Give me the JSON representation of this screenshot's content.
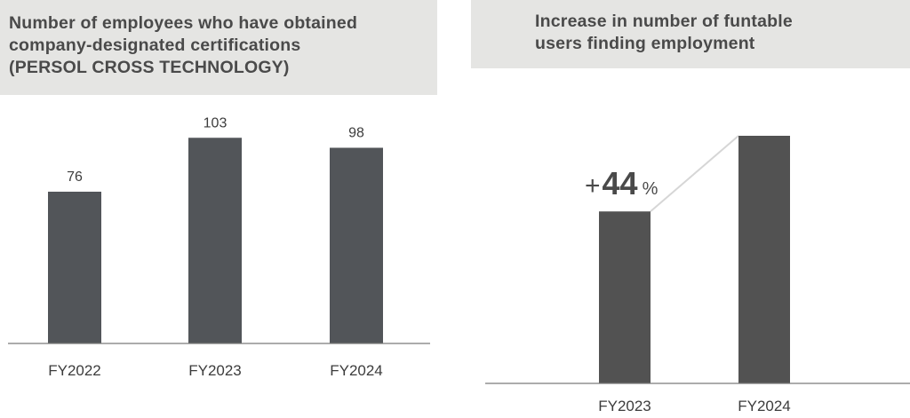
{
  "chart_data": [
    {
      "type": "bar",
      "title_lines": [
        "Number of employees who have obtained",
        "company-designated certifications",
        "(PERSOL CROSS TECHNOLOGY)"
      ],
      "categories": [
        "FY2022",
        "FY2023",
        "FY2024"
      ],
      "values": [
        76,
        103,
        98
      ],
      "value_labels": [
        "76",
        "103",
        "98"
      ],
      "ylim": [
        0,
        120
      ],
      "grid": false,
      "bar_color": "#525559",
      "axis_color": "#7a7a7a"
    },
    {
      "type": "bar",
      "title_lines": [
        "Increase in number of funtable",
        "users finding employment"
      ],
      "categories": [
        "FY2023",
        "FY2024"
      ],
      "values": [
        100,
        144
      ],
      "growth": {
        "plus": "+",
        "number": "44",
        "unit": "%"
      },
      "ylim": [
        0,
        160
      ],
      "grid": false,
      "bar_color": "#525252",
      "connector_color": "#d6d6d6",
      "axis_color": "#7a7a7a"
    }
  ]
}
